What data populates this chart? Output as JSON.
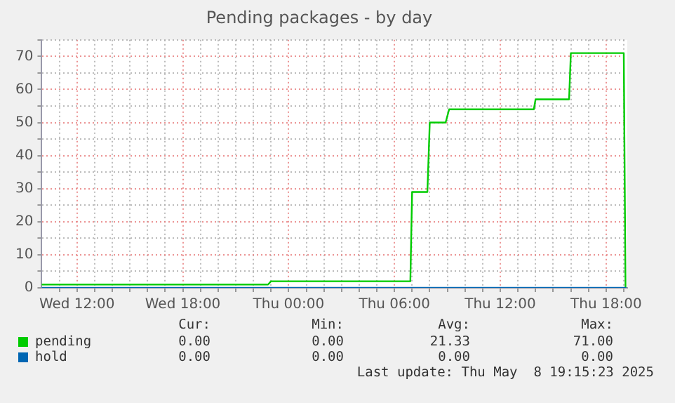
{
  "chart_data": {
    "type": "line",
    "title": "Pending packages - by day",
    "xlim": [
      "2025-05-07T10:00",
      "2025-05-08T19:12"
    ],
    "ylim": [
      0,
      75
    ],
    "xticks": [
      {
        "value": "2025-05-07T11:00",
        "label": null
      },
      {
        "value": "2025-05-07T12:00",
        "label": "Wed 12:00"
      },
      {
        "value": "2025-05-07T13:00",
        "label": null
      },
      {
        "value": "2025-05-07T14:00",
        "label": null
      },
      {
        "value": "2025-05-07T15:00",
        "label": null
      },
      {
        "value": "2025-05-07T16:00",
        "label": null
      },
      {
        "value": "2025-05-07T17:00",
        "label": null
      },
      {
        "value": "2025-05-07T18:00",
        "label": "Wed 18:00"
      },
      {
        "value": "2025-05-07T19:00",
        "label": null
      },
      {
        "value": "2025-05-07T20:00",
        "label": null
      },
      {
        "value": "2025-05-07T21:00",
        "label": null
      },
      {
        "value": "2025-05-07T22:00",
        "label": null
      },
      {
        "value": "2025-05-07T23:00",
        "label": null
      },
      {
        "value": "2025-05-08T00:00",
        "label": "Thu 00:00"
      },
      {
        "value": "2025-05-08T01:00",
        "label": null
      },
      {
        "value": "2025-05-08T02:00",
        "label": null
      },
      {
        "value": "2025-05-08T03:00",
        "label": null
      },
      {
        "value": "2025-05-08T04:00",
        "label": null
      },
      {
        "value": "2025-05-08T05:00",
        "label": null
      },
      {
        "value": "2025-05-08T06:00",
        "label": "Thu 06:00"
      },
      {
        "value": "2025-05-08T07:00",
        "label": null
      },
      {
        "value": "2025-05-08T08:00",
        "label": null
      },
      {
        "value": "2025-05-08T09:00",
        "label": null
      },
      {
        "value": "2025-05-08T10:00",
        "label": null
      },
      {
        "value": "2025-05-08T11:00",
        "label": null
      },
      {
        "value": "2025-05-08T12:00",
        "label": "Thu 12:00"
      },
      {
        "value": "2025-05-08T13:00",
        "label": null
      },
      {
        "value": "2025-05-08T14:00",
        "label": null
      },
      {
        "value": "2025-05-08T15:00",
        "label": null
      },
      {
        "value": "2025-05-08T16:00",
        "label": null
      },
      {
        "value": "2025-05-08T17:00",
        "label": null
      },
      {
        "value": "2025-05-08T18:00",
        "label": "Thu 18:00"
      },
      {
        "value": "2025-05-08T19:00",
        "label": null
      }
    ],
    "yticks": [
      0,
      {
        "value": 5,
        "label": null
      },
      10,
      {
        "value": 15,
        "label": null
      },
      20,
      {
        "value": 25,
        "label": null
      },
      30,
      {
        "value": 35,
        "label": null
      },
      40,
      {
        "value": 45,
        "label": null
      },
      50,
      {
        "value": 55,
        "label": null
      },
      60,
      {
        "value": 65,
        "label": null
      },
      70,
      {
        "value": 75,
        "label": null
      }
    ],
    "grid": true,
    "legend": "bottom",
    "marker": "none",
    "line_style": "solid",
    "series": [
      {
        "name": "pending",
        "color": "#00cc00",
        "x": [
          "2025-05-07T10:00",
          "2025-05-07T22:50",
          "2025-05-07T23:00",
          "2025-05-08T06:54",
          "2025-05-08T07:00",
          "2025-05-08T07:52",
          "2025-05-08T08:00",
          "2025-05-08T08:54",
          "2025-05-08T09:06",
          "2025-05-08T13:54",
          "2025-05-08T14:00",
          "2025-05-08T15:54",
          "2025-05-08T16:00",
          "2025-05-08T19:00",
          "2025-05-08T19:06"
        ],
        "values": [
          1,
          1,
          2,
          2,
          29,
          29,
          50,
          50,
          54,
          54,
          57,
          57,
          71,
          71,
          0
        ]
      },
      {
        "name": "hold",
        "color": "#0066b3",
        "x": [
          "2025-05-07T10:00",
          "2025-05-08T19:06"
        ],
        "values": [
          0,
          0
        ]
      }
    ],
    "annotations": [
      "Cur:",
      "Min:",
      "Avg:",
      "Max:",
      "0.00",
      "0.00",
      "21.33",
      "71.00",
      "0.00",
      "0.00",
      "0.00",
      "0.00",
      "Last update: Thu May  8 19:15:23 2025"
    ]
  }
}
